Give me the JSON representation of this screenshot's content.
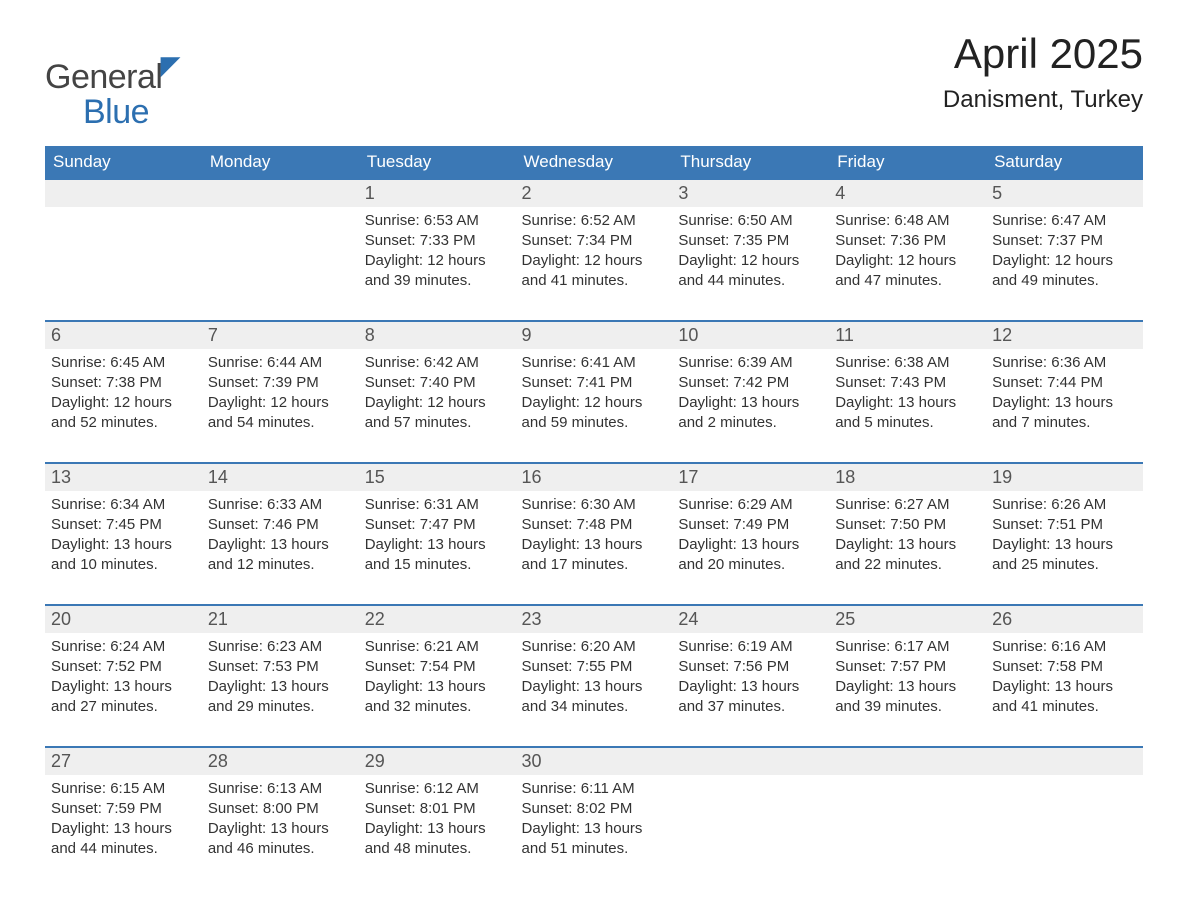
{
  "brand": {
    "line1": "General",
    "line2": "Blue"
  },
  "title": "April 2025",
  "location": "Danisment, Turkey",
  "colors": {
    "header_bg": "#3b78b5",
    "header_text": "#ffffff",
    "daynum_bg": "#efefef",
    "daynum_border": "#3b78b5",
    "body_text": "#333333",
    "page_bg": "#ffffff"
  },
  "typography": {
    "title_size": 42,
    "location_size": 24,
    "th_size": 17,
    "cell_size": 15
  },
  "weekdays": [
    "Sunday",
    "Monday",
    "Tuesday",
    "Wednesday",
    "Thursday",
    "Friday",
    "Saturday"
  ],
  "labels": {
    "sunrise": "Sunrise:",
    "sunset": "Sunset:",
    "daylight": "Daylight:"
  },
  "weeks": [
    [
      null,
      null,
      {
        "n": "1",
        "sunrise": "6:53 AM",
        "sunset": "7:33 PM",
        "daylight": "12 hours and 39 minutes."
      },
      {
        "n": "2",
        "sunrise": "6:52 AM",
        "sunset": "7:34 PM",
        "daylight": "12 hours and 41 minutes."
      },
      {
        "n": "3",
        "sunrise": "6:50 AM",
        "sunset": "7:35 PM",
        "daylight": "12 hours and 44 minutes."
      },
      {
        "n": "4",
        "sunrise": "6:48 AM",
        "sunset": "7:36 PM",
        "daylight": "12 hours and 47 minutes."
      },
      {
        "n": "5",
        "sunrise": "6:47 AM",
        "sunset": "7:37 PM",
        "daylight": "12 hours and 49 minutes."
      }
    ],
    [
      {
        "n": "6",
        "sunrise": "6:45 AM",
        "sunset": "7:38 PM",
        "daylight": "12 hours and 52 minutes."
      },
      {
        "n": "7",
        "sunrise": "6:44 AM",
        "sunset": "7:39 PM",
        "daylight": "12 hours and 54 minutes."
      },
      {
        "n": "8",
        "sunrise": "6:42 AM",
        "sunset": "7:40 PM",
        "daylight": "12 hours and 57 minutes."
      },
      {
        "n": "9",
        "sunrise": "6:41 AM",
        "sunset": "7:41 PM",
        "daylight": "12 hours and 59 minutes."
      },
      {
        "n": "10",
        "sunrise": "6:39 AM",
        "sunset": "7:42 PM",
        "daylight": "13 hours and 2 minutes."
      },
      {
        "n": "11",
        "sunrise": "6:38 AM",
        "sunset": "7:43 PM",
        "daylight": "13 hours and 5 minutes."
      },
      {
        "n": "12",
        "sunrise": "6:36 AM",
        "sunset": "7:44 PM",
        "daylight": "13 hours and 7 minutes."
      }
    ],
    [
      {
        "n": "13",
        "sunrise": "6:34 AM",
        "sunset": "7:45 PM",
        "daylight": "13 hours and 10 minutes."
      },
      {
        "n": "14",
        "sunrise": "6:33 AM",
        "sunset": "7:46 PM",
        "daylight": "13 hours and 12 minutes."
      },
      {
        "n": "15",
        "sunrise": "6:31 AM",
        "sunset": "7:47 PM",
        "daylight": "13 hours and 15 minutes."
      },
      {
        "n": "16",
        "sunrise": "6:30 AM",
        "sunset": "7:48 PM",
        "daylight": "13 hours and 17 minutes."
      },
      {
        "n": "17",
        "sunrise": "6:29 AM",
        "sunset": "7:49 PM",
        "daylight": "13 hours and 20 minutes."
      },
      {
        "n": "18",
        "sunrise": "6:27 AM",
        "sunset": "7:50 PM",
        "daylight": "13 hours and 22 minutes."
      },
      {
        "n": "19",
        "sunrise": "6:26 AM",
        "sunset": "7:51 PM",
        "daylight": "13 hours and 25 minutes."
      }
    ],
    [
      {
        "n": "20",
        "sunrise": "6:24 AM",
        "sunset": "7:52 PM",
        "daylight": "13 hours and 27 minutes."
      },
      {
        "n": "21",
        "sunrise": "6:23 AM",
        "sunset": "7:53 PM",
        "daylight": "13 hours and 29 minutes."
      },
      {
        "n": "22",
        "sunrise": "6:21 AM",
        "sunset": "7:54 PM",
        "daylight": "13 hours and 32 minutes."
      },
      {
        "n": "23",
        "sunrise": "6:20 AM",
        "sunset": "7:55 PM",
        "daylight": "13 hours and 34 minutes."
      },
      {
        "n": "24",
        "sunrise": "6:19 AM",
        "sunset": "7:56 PM",
        "daylight": "13 hours and 37 minutes."
      },
      {
        "n": "25",
        "sunrise": "6:17 AM",
        "sunset": "7:57 PM",
        "daylight": "13 hours and 39 minutes."
      },
      {
        "n": "26",
        "sunrise": "6:16 AM",
        "sunset": "7:58 PM",
        "daylight": "13 hours and 41 minutes."
      }
    ],
    [
      {
        "n": "27",
        "sunrise": "6:15 AM",
        "sunset": "7:59 PM",
        "daylight": "13 hours and 44 minutes."
      },
      {
        "n": "28",
        "sunrise": "6:13 AM",
        "sunset": "8:00 PM",
        "daylight": "13 hours and 46 minutes."
      },
      {
        "n": "29",
        "sunrise": "6:12 AM",
        "sunset": "8:01 PM",
        "daylight": "13 hours and 48 minutes."
      },
      {
        "n": "30",
        "sunrise": "6:11 AM",
        "sunset": "8:02 PM",
        "daylight": "13 hours and 51 minutes."
      },
      null,
      null,
      null
    ]
  ]
}
